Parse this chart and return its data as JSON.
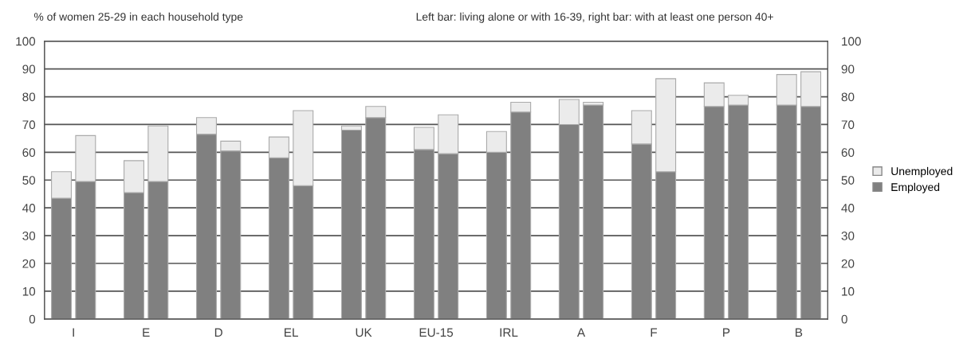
{
  "chart_data": {
    "type": "bar",
    "title": "% of women 25-29 in each household type",
    "subtitle": "Left bar: living alone or with 16-39, right bar: with at least one person 40+",
    "categories": [
      "I",
      null,
      null,
      "E",
      null,
      null,
      "D",
      null,
      null,
      "EL",
      null,
      null,
      "UK",
      null,
      null,
      "EU-15",
      null,
      null,
      "IRL",
      null,
      null,
      "A",
      null,
      null,
      "F",
      null,
      null,
      "P",
      null,
      null,
      "B",
      null
    ],
    "stacked": true,
    "series": [
      {
        "name": "Employed",
        "color": "#808080",
        "values": [
          43.5,
          49.5,
          null,
          45.5,
          49.5,
          null,
          66.5,
          60.5,
          null,
          58,
          48,
          null,
          68,
          72.5,
          null,
          61,
          59.5,
          null,
          60,
          74.5,
          null,
          70,
          77,
          null,
          63,
          53,
          null,
          76.5,
          77,
          null,
          77,
          76.5
        ]
      },
      {
        "name": "Unemployed",
        "color": "#ebebeb",
        "values": [
          9.5,
          16.5,
          null,
          11.5,
          20,
          null,
          6,
          3.5,
          null,
          7.5,
          27,
          null,
          1.5,
          4,
          null,
          8,
          14,
          null,
          7.5,
          3.5,
          null,
          9,
          1,
          null,
          12,
          33.5,
          null,
          8.5,
          3.5,
          null,
          11,
          12.5
        ]
      }
    ],
    "ylim": [
      0,
      100
    ],
    "yticks": [
      0,
      10,
      20,
      30,
      40,
      50,
      60,
      70,
      80,
      90,
      100
    ],
    "y2lim": [
      0,
      100
    ],
    "y2ticks": [
      0,
      10,
      20,
      30,
      40,
      50,
      60,
      70,
      80,
      90,
      100
    ],
    "grid": "y",
    "legend": "right"
  }
}
